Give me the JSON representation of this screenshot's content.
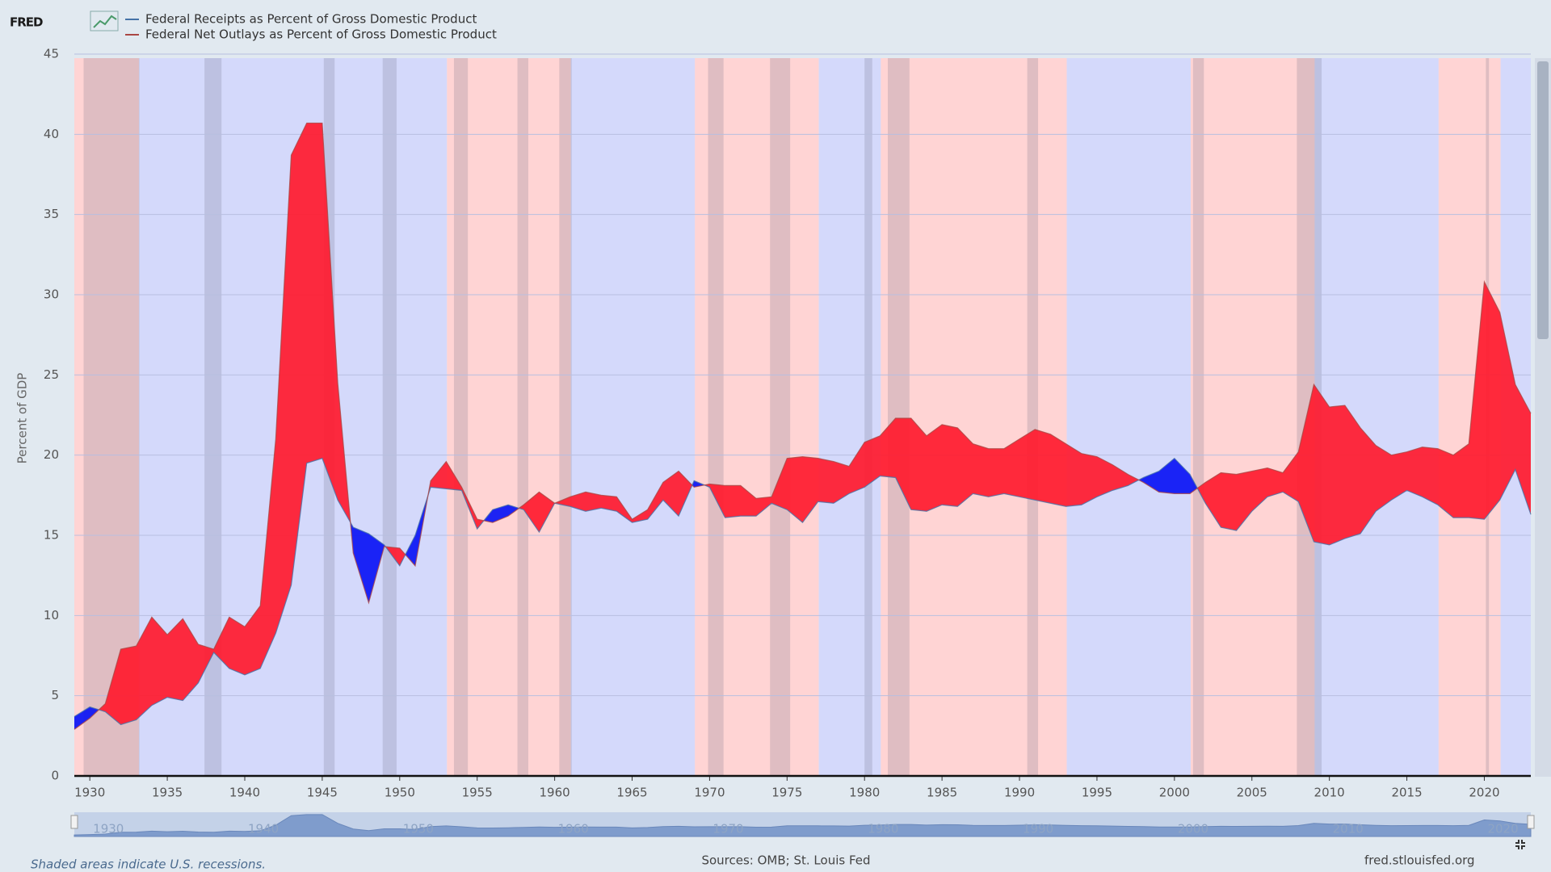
{
  "logo": "FRED",
  "chart_data": {
    "type": "area-between",
    "y_label": "Percent of GDP",
    "x": [
      1929,
      1930,
      1931,
      1932,
      1933,
      1934,
      1935,
      1936,
      1937,
      1938,
      1939,
      1940,
      1941,
      1942,
      1943,
      1944,
      1945,
      1946,
      1947,
      1948,
      1949,
      1950,
      1951,
      1952,
      1953,
      1954,
      1955,
      1956,
      1957,
      1958,
      1959,
      1960,
      1961,
      1962,
      1963,
      1964,
      1965,
      1966,
      1967,
      1968,
      1969,
      1970,
      1971,
      1972,
      1973,
      1974,
      1975,
      1976,
      1977,
      1978,
      1979,
      1980,
      1981,
      1982,
      1983,
      1984,
      1985,
      1986,
      1987,
      1988,
      1989,
      1990,
      1991,
      1992,
      1993,
      1994,
      1995,
      1996,
      1997,
      1998,
      1999,
      2000,
      2001,
      2002,
      2003,
      2004,
      2005,
      2006,
      2007,
      2008,
      2009,
      2010,
      2011,
      2012,
      2013,
      2014,
      2015,
      2016,
      2017,
      2018,
      2019,
      2020,
      2021,
      2022,
      2023
    ],
    "series": [
      {
        "name": "Federal Receipts as Percent of Gross Domestic Product",
        "color": "#4572a7",
        "values": [
          3.7,
          4.3,
          4.0,
          3.2,
          3.5,
          4.4,
          4.9,
          4.7,
          5.8,
          7.7,
          6.7,
          6.3,
          6.7,
          8.9,
          11.9,
          19.5,
          19.8,
          17.2,
          15.5,
          15.1,
          14.4,
          13.1,
          15.0,
          18.0,
          17.9,
          17.8,
          15.4,
          16.6,
          16.9,
          16.6,
          15.2,
          17.0,
          16.8,
          16.5,
          16.7,
          16.5,
          15.8,
          16.0,
          17.2,
          16.2,
          18.4,
          18.0,
          16.1,
          16.2,
          16.2,
          17.0,
          16.6,
          15.8,
          17.1,
          17.0,
          17.6,
          18.0,
          18.7,
          18.6,
          16.6,
          16.5,
          16.9,
          16.8,
          17.6,
          17.4,
          17.6,
          17.4,
          17.2,
          17.0,
          16.8,
          16.9,
          17.4,
          17.8,
          18.1,
          18.6,
          19.0,
          19.8,
          18.8,
          17.0,
          15.5,
          15.3,
          16.5,
          17.4,
          17.7,
          17.1,
          14.6,
          14.4,
          14.8,
          15.1,
          16.5,
          17.2,
          17.8,
          17.4,
          16.9,
          16.1,
          16.1,
          16.0,
          17.2,
          19.1,
          16.3
        ]
      },
      {
        "name": "Federal Net Outlays as Percent of Gross Domestic Product",
        "color": "#aa4643",
        "values": [
          2.9,
          3.6,
          4.5,
          7.9,
          8.1,
          9.9,
          8.8,
          9.8,
          8.2,
          7.9,
          9.9,
          9.3,
          10.6,
          21.0,
          38.7,
          40.7,
          40.7,
          24.5,
          13.9,
          10.8,
          14.3,
          14.2,
          13.1,
          18.4,
          19.6,
          18.0,
          16.0,
          15.8,
          16.2,
          16.9,
          17.7,
          17.0,
          17.4,
          17.7,
          17.5,
          17.4,
          16.0,
          16.6,
          18.3,
          19.0,
          18.0,
          18.2,
          18.1,
          18.1,
          17.3,
          17.4,
          19.8,
          19.9,
          19.8,
          19.6,
          19.3,
          20.8,
          21.2,
          22.3,
          22.3,
          21.2,
          21.9,
          21.7,
          20.7,
          20.4,
          20.4,
          21.0,
          21.6,
          21.3,
          20.7,
          20.1,
          19.9,
          19.4,
          18.8,
          18.3,
          17.7,
          17.6,
          17.6,
          18.3,
          18.9,
          18.8,
          19.0,
          19.2,
          18.9,
          20.2,
          24.4,
          23.0,
          23.1,
          21.7,
          20.6,
          20.0,
          20.2,
          20.5,
          20.4,
          20.0,
          20.7,
          30.8,
          28.9,
          24.4,
          22.6
        ]
      }
    ],
    "deficit_color": "#ff1a2e",
    "surplus_color": "#0a14f5",
    "xlim": [
      1929,
      2023
    ],
    "xticks": [
      1930,
      1935,
      1940,
      1945,
      1950,
      1955,
      1960,
      1965,
      1970,
      1975,
      1980,
      1985,
      1990,
      1995,
      2000,
      2005,
      2010,
      2015,
      2020
    ],
    "ylim": [
      0,
      45
    ],
    "yticks": [
      0,
      5,
      10,
      15,
      20,
      25,
      30,
      35,
      40,
      45
    ],
    "grid": true,
    "background_spans": [
      {
        "start": 1929,
        "end": 1933.17,
        "color": "#ffd4d4"
      },
      {
        "start": 1933.17,
        "end": 1953.05,
        "color": "#d4d9fb"
      },
      {
        "start": 1953.05,
        "end": 1961.05,
        "color": "#ffd4d4"
      },
      {
        "start": 1961.05,
        "end": 1969.05,
        "color": "#d4d9fb"
      },
      {
        "start": 1969.05,
        "end": 1977.05,
        "color": "#ffd4d4"
      },
      {
        "start": 1977.05,
        "end": 1981.05,
        "color": "#d4d9fb"
      },
      {
        "start": 1981.05,
        "end": 1993.05,
        "color": "#ffd4d4"
      },
      {
        "start": 1993.05,
        "end": 2001.05,
        "color": "#d4d9fb"
      },
      {
        "start": 2001.05,
        "end": 2009.05,
        "color": "#ffd4d4"
      },
      {
        "start": 2009.05,
        "end": 2017.05,
        "color": "#d4d9fb"
      },
      {
        "start": 2017.05,
        "end": 2021.05,
        "color": "#ffd4d4"
      },
      {
        "start": 2021.05,
        "end": 2023,
        "color": "#d4d9fb"
      }
    ],
    "recessions": [
      [
        1929.6,
        1933.2
      ],
      [
        1937.4,
        1938.5
      ],
      [
        1945.1,
        1945.8
      ],
      [
        1948.9,
        1949.8
      ],
      [
        1953.5,
        1954.4
      ],
      [
        1957.6,
        1958.3
      ],
      [
        1960.3,
        1961.1
      ],
      [
        1969.9,
        1970.9
      ],
      [
        1973.9,
        1975.2
      ],
      [
        1980.0,
        1980.5
      ],
      [
        1981.5,
        1982.9
      ],
      [
        1990.5,
        1991.2
      ],
      [
        2001.2,
        2001.9
      ],
      [
        2007.9,
        2009.5
      ],
      [
        2020.1,
        2020.3
      ]
    ],
    "navigator_ticks": [
      1930,
      1940,
      1950,
      1960,
      1970,
      1980,
      1990,
      2000,
      2010,
      2020
    ],
    "recession_note": "Shaded areas indicate U.S. recessions.",
    "source": "Sources: OMB; St. Louis Fed",
    "site": "fred.stlouisfed.org"
  }
}
